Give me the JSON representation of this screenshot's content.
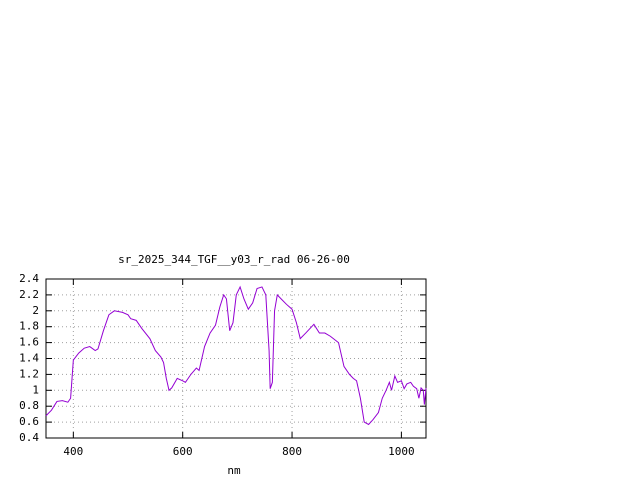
{
  "chart_data": {
    "type": "line",
    "title": "sr_2025_344_TGF__y03_r_rad 06-26-00",
    "x_label": "nm",
    "x": [
      350,
      360,
      370,
      380,
      390,
      395,
      400,
      410,
      420,
      430,
      440,
      445,
      455,
      465,
      475,
      490,
      500,
      505,
      515,
      525,
      540,
      550,
      560,
      565,
      570,
      575,
      580,
      590,
      600,
      605,
      615,
      625,
      630,
      640,
      650,
      660,
      668,
      675,
      680,
      686,
      692,
      698,
      705,
      712,
      720,
      728,
      736,
      745,
      752,
      758,
      760,
      764,
      768,
      773,
      780,
      790,
      800,
      808,
      815,
      825,
      840,
      850,
      860,
      870,
      885,
      895,
      905,
      912,
      918,
      925,
      932,
      940,
      948,
      958,
      965,
      972,
      978,
      982,
      988,
      993,
      1000,
      1005,
      1010,
      1017,
      1022,
      1028,
      1032,
      1036,
      1040,
      1042,
      1045
    ],
    "values": [
      0.68,
      0.75,
      0.86,
      0.87,
      0.85,
      0.9,
      1.38,
      1.47,
      1.53,
      1.55,
      1.5,
      1.52,
      1.75,
      1.95,
      2.0,
      1.98,
      1.95,
      1.9,
      1.88,
      1.78,
      1.65,
      1.5,
      1.42,
      1.35,
      1.15,
      1.0,
      1.03,
      1.15,
      1.12,
      1.1,
      1.2,
      1.28,
      1.25,
      1.55,
      1.72,
      1.82,
      2.05,
      2.2,
      2.15,
      1.75,
      1.85,
      2.2,
      2.3,
      2.15,
      2.02,
      2.1,
      2.28,
      2.3,
      2.2,
      1.5,
      1.02,
      1.1,
      2.0,
      2.2,
      2.15,
      2.08,
      2.02,
      1.85,
      1.65,
      1.72,
      1.83,
      1.72,
      1.72,
      1.68,
      1.6,
      1.3,
      1.2,
      1.15,
      1.12,
      0.9,
      0.6,
      0.57,
      0.63,
      0.72,
      0.9,
      1.0,
      1.1,
      1.0,
      1.18,
      1.1,
      1.12,
      1.02,
      1.08,
      1.1,
      1.05,
      1.02,
      0.9,
      1.03,
      1.0,
      0.82,
      1.03
    ],
    "color": "#9400d3",
    "xlim": [
      350,
      1045
    ],
    "xticks": [
      400,
      600,
      800,
      1000
    ],
    "ylim": [
      0.4,
      2.4
    ],
    "yticks": [
      0.4,
      0.6,
      0.8,
      1,
      1.2,
      1.4,
      1.6,
      1.8,
      2,
      2.2,
      2.4
    ],
    "grid": true
  }
}
